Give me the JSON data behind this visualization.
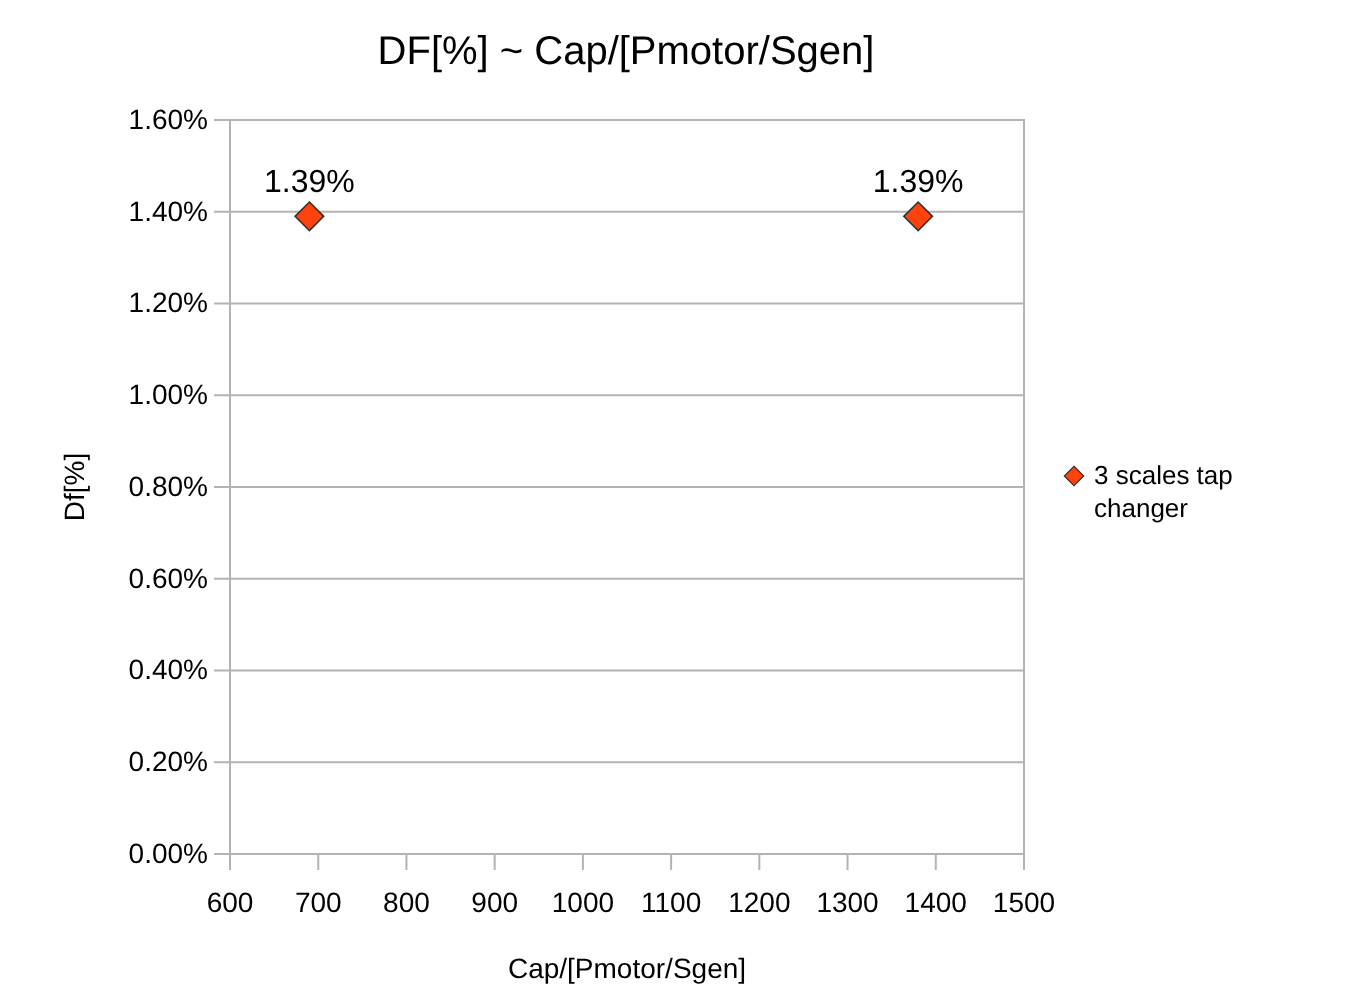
{
  "chart_data": {
    "type": "scatter",
    "title": "DF[%] ~ Cap/[Pmotor/Sgen]",
    "xlabel": "Cap/[Pmotor/Sgen]",
    "ylabel": "Df[%]",
    "x": [
      690,
      1380
    ],
    "series": [
      {
        "name": "3 scales tap changer",
        "color": "#ff420e",
        "values": [
          1.39,
          1.39
        ]
      }
    ],
    "value_labels": [
      "1.39%",
      "1.39%"
    ],
    "xlim": [
      600,
      1500
    ],
    "xticks": [
      600,
      700,
      800,
      900,
      1000,
      1100,
      1200,
      1300,
      1400,
      1500
    ],
    "ylim": [
      0,
      1.6
    ],
    "yticks": [
      {
        "value": 0,
        "label": "0.00%"
      },
      {
        "value": 0.2,
        "label": "0.20%"
      },
      {
        "value": 0.4,
        "label": "0.40%"
      },
      {
        "value": 0.6,
        "label": "0.60%"
      },
      {
        "value": 0.8,
        "label": "0.80%"
      },
      {
        "value": 1,
        "label": "1.00%"
      },
      {
        "value": 1.2,
        "label": "1.20%"
      },
      {
        "value": 1.4,
        "label": "1.40%"
      },
      {
        "value": 1.6,
        "label": "1.60%"
      }
    ],
    "grid": "y",
    "legend": "right",
    "marker": "diamond"
  }
}
